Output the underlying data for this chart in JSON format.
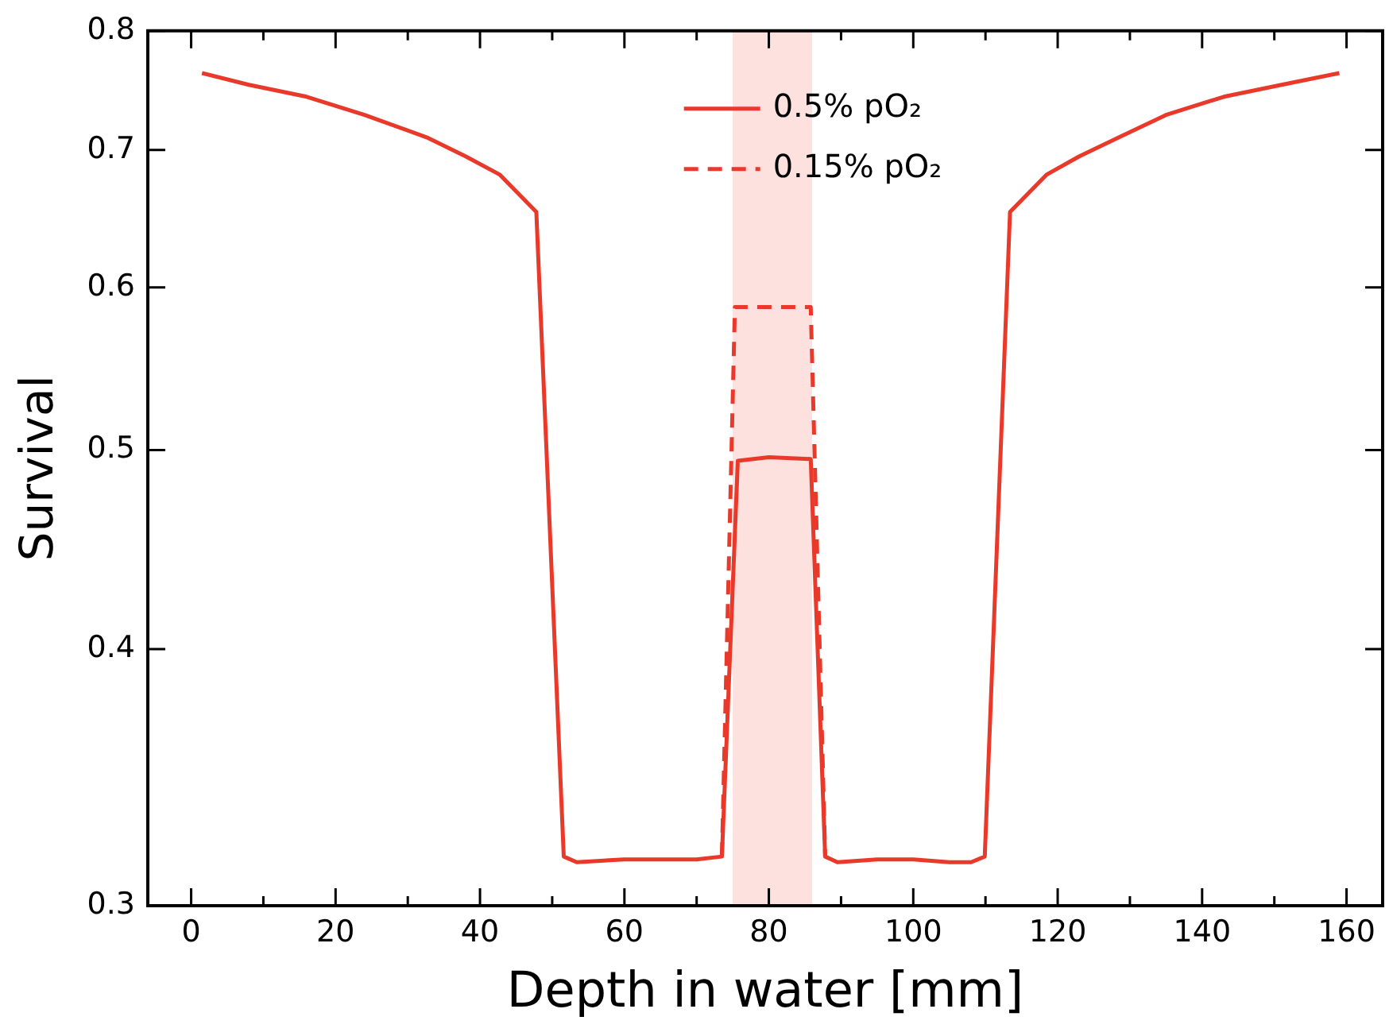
{
  "chart_data": {
    "type": "line",
    "xlabel": "Depth in water [mm]",
    "ylabel": "Survival",
    "xlim": [
      -6,
      165
    ],
    "ylim": [
      0.3,
      0.8
    ],
    "log": "y",
    "xticks": [
      0,
      {
        "value": 10,
        "label": null
      },
      20,
      {
        "value": 30,
        "label": null
      },
      40,
      {
        "value": 50,
        "label": null
      },
      60,
      {
        "value": 70,
        "label": null
      },
      80,
      {
        "value": 90,
        "label": null
      },
      100,
      {
        "value": 110,
        "label": null
      },
      120,
      {
        "value": 130,
        "label": null
      },
      140,
      {
        "value": 150,
        "label": null
      },
      160
    ],
    "yticks": [
      0.3,
      0.4,
      0.5,
      0.6,
      0.7,
      0.8
    ],
    "grid": false,
    "legend": "top",
    "marker": "none",
    "bands": [
      {
        "axis": "x",
        "from": 75,
        "to": 86,
        "color": "#fce1de"
      }
    ],
    "series": [
      {
        "name": "0.5% pO₂",
        "color": "#e8392a",
        "line_style": "solid",
        "x": [
          1.5,
          8,
          16,
          24,
          32.6,
          38,
          42.7,
          47.8,
          51.6,
          53.4,
          60,
          66,
          70,
          73.5,
          75.7,
          80,
          85.8,
          87.8,
          89.5,
          95,
          100,
          105,
          108,
          109.9,
          113.4,
          118.5,
          123,
          128.5,
          135,
          143,
          151,
          159
        ],
        "values": [
          0.763,
          0.753,
          0.743,
          0.728,
          0.71,
          0.695,
          0.681,
          0.653,
          0.317,
          0.315,
          0.316,
          0.316,
          0.316,
          0.317,
          0.494,
          0.496,
          0.495,
          0.317,
          0.315,
          0.316,
          0.316,
          0.315,
          0.315,
          0.317,
          0.653,
          0.681,
          0.695,
          0.71,
          0.728,
          0.743,
          0.753,
          0.763
        ]
      },
      {
        "name": "0.15% pO₂",
        "color": "#e8392a",
        "line_style": "dashed",
        "x": [
          73.5,
          75.3,
          85.8,
          87.8
        ],
        "values": [
          0.317,
          0.587,
          0.587,
          0.317
        ]
      }
    ]
  }
}
